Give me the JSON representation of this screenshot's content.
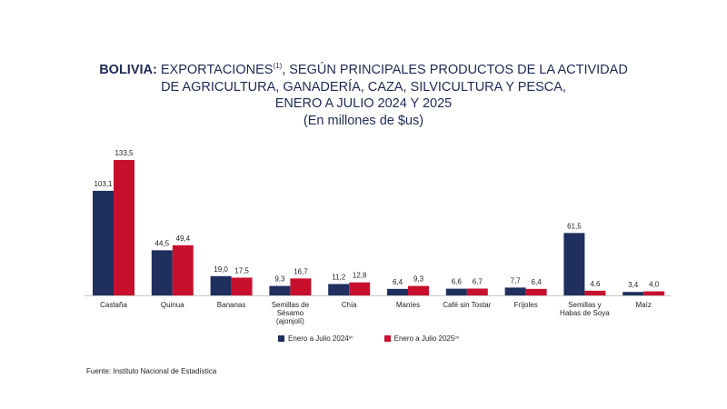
{
  "title": {
    "bold": "BOLIVIA:",
    "line1_pre": "EXPORTACIONES",
    "line1_sup": "(1)",
    "line1_post": ", SEGÚN PRINCIPALES PRODUCTOS DE LA ACTIVIDAD",
    "line2": "DE AGRICULTURA, GANADERÍA, CAZA, SILVICULTURA Y PESCA,",
    "line3": "ENERO A JULIO 2024 Y 2025",
    "line4": "(En millones de $us)"
  },
  "legend": {
    "series1_label": "Enero a Julio 2024",
    "series1_sup": "(p)",
    "series2_label": "Enero a Julio  2025",
    "series2_sup": "(p)"
  },
  "source": "Fuente: Instituto Nacional de Estadística",
  "colors": {
    "series1": "#1f2f5e",
    "series2": "#c8102e",
    "axis": "#c8c8c8",
    "label": "#222222"
  },
  "chart_data": {
    "type": "bar",
    "categories": [
      [
        "Castaña"
      ],
      [
        "Quinua"
      ],
      [
        "Bananas"
      ],
      [
        "Semillas de",
        "Sésamo",
        "(ajonjolí)"
      ],
      [
        "Chía"
      ],
      [
        "Maníes"
      ],
      [
        "Café sin Tostar"
      ],
      [
        "Fríjoles"
      ],
      [
        "Semillas y",
        "Habas de Soya"
      ],
      [
        "Maíz"
      ]
    ],
    "series": [
      {
        "name": "Enero a Julio 2024",
        "values": [
          103.1,
          44.5,
          19.0,
          9.3,
          11.2,
          6.4,
          6.6,
          7.7,
          61.5,
          3.4
        ],
        "labels": [
          "103,1",
          "44,5",
          "19,0",
          "9,3",
          "11,2",
          "6,4",
          "6,6",
          "7,7",
          "61,5",
          "3,4"
        ]
      },
      {
        "name": "Enero a Julio  2025",
        "values": [
          133.5,
          49.4,
          17.5,
          16.7,
          12.8,
          9.3,
          6.7,
          6.4,
          4.6,
          4.0
        ],
        "labels": [
          "133,5",
          "49,4",
          "17,5",
          "16,7",
          "12,8",
          "9,3",
          "6,7",
          "6,4",
          "4,6",
          "4,0"
        ]
      }
    ],
    "ylim": [
      0,
      140
    ],
    "grid": false,
    "legend_position": "bottom-center"
  }
}
